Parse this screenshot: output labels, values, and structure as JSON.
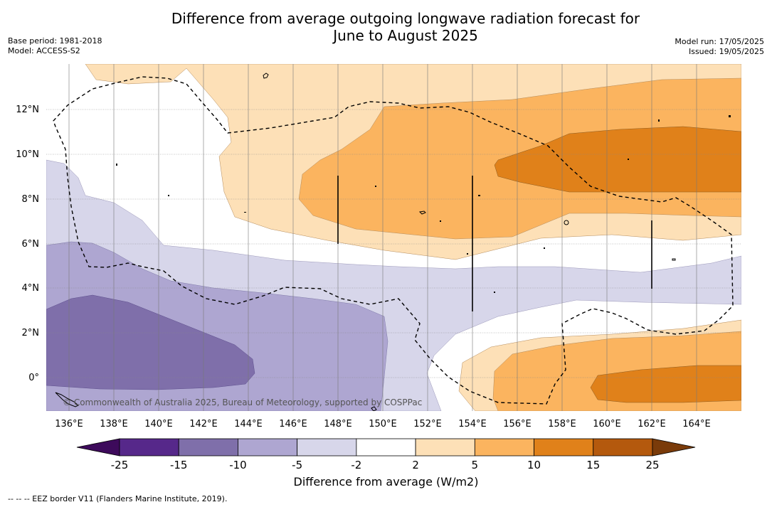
{
  "title": {
    "line1": "Difference from average outgoing longwave radiation forecast for",
    "line2": "June to August 2025"
  },
  "meta_left": {
    "base_period": "Base period: 1981-2018",
    "model": "Model: ACCESS-S2"
  },
  "meta_right": {
    "model_run": "Model run: 17/05/2025",
    "issued": "Issued: 19/05/2025"
  },
  "map": {
    "lon_ticks": [
      "136°E",
      "138°E",
      "140°E",
      "142°E",
      "144°E",
      "146°E",
      "148°E",
      "150°E",
      "152°E",
      "154°E",
      "156°E",
      "158°E",
      "160°E",
      "162°E",
      "164°E"
    ],
    "lat_ticks": [
      "12°N",
      "10°N",
      "8°N",
      "6°N",
      "4°N",
      "2°N",
      "0°"
    ],
    "copyright": "© Commonwealth of Australia 2025, Bureau of Meteorology, supported by COSPPac"
  },
  "colorbar": {
    "title": "Difference from average (W/m2)",
    "labels": [
      "-25",
      "-15",
      "-10",
      "-5",
      "-2",
      "2",
      "5",
      "10",
      "15",
      "25"
    ],
    "colors": [
      "#3d0a5b",
      "#56288a",
      "#7f6faa",
      "#aea6d1",
      "#d7d6ea",
      "#ffffff",
      "#fde0b7",
      "#fbb45f",
      "#e0811a",
      "#b4590d",
      "#7a3b0a"
    ]
  },
  "footnote": "--  --  -- EEZ border V11 (Flanders Marine Institute, 2019)."
}
